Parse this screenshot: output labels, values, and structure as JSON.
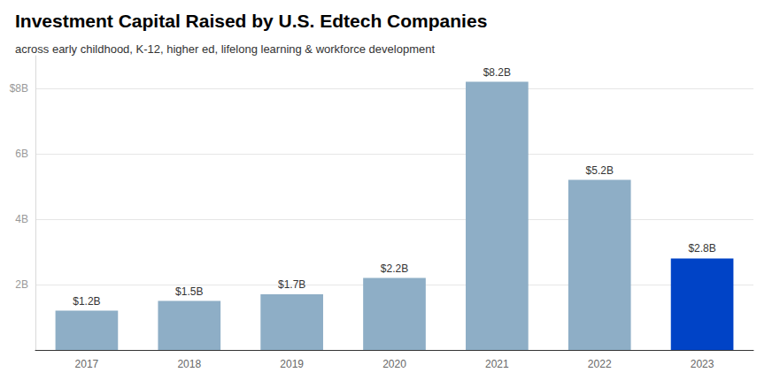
{
  "chart_data": {
    "type": "bar",
    "title": "Investment Capital Raised by U.S. Edtech Companies",
    "subtitle": "across early childhood, K-12, higher ed, lifelong learning & workforce development",
    "categories": [
      "2017",
      "2018",
      "2019",
      "2020",
      "2021",
      "2022",
      "2023"
    ],
    "values": [
      1.2,
      1.5,
      1.7,
      2.2,
      8.2,
      5.2,
      2.8
    ],
    "value_labels": [
      "$1.2B",
      "$1.5B",
      "$1.7B",
      "$2.2B",
      "$8.2B",
      "$5.2B",
      "$2.8B"
    ],
    "colors": [
      "#8eaec6",
      "#8eaec6",
      "#8eaec6",
      "#8eaec6",
      "#8eaec6",
      "#8eaec6",
      "#0043c6"
    ],
    "ylim": [
      0,
      9
    ],
    "yticks": [
      {
        "value": 2,
        "label": "2B"
      },
      {
        "value": 4,
        "label": "4B"
      },
      {
        "value": 6,
        "label": "6B"
      },
      {
        "value": 8,
        "label": "$8B"
      }
    ],
    "grid": true,
    "data_labels": true
  }
}
